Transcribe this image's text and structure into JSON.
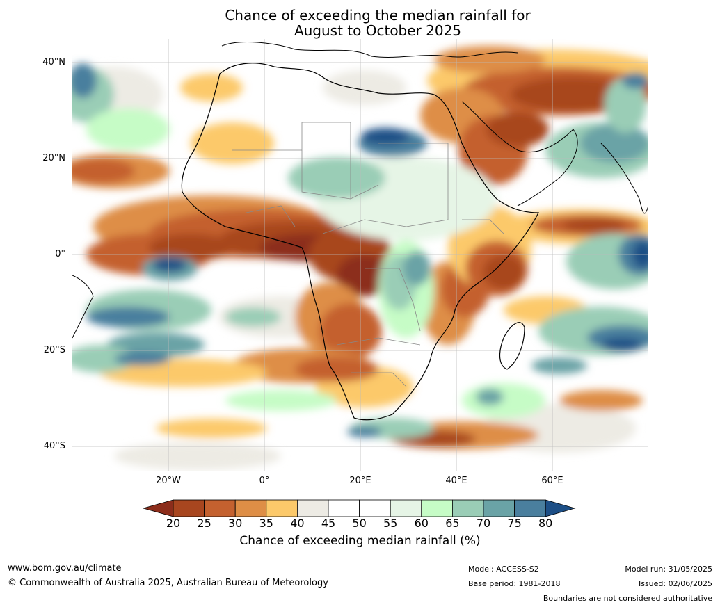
{
  "title": {
    "line1": "Chance of exceeding the median rainfall for",
    "line2": "August to October 2025"
  },
  "map": {
    "region": "Africa",
    "lat_labels": [
      "40°N",
      "20°N",
      "0°",
      "20°S",
      "40°S"
    ],
    "lon_labels": [
      "20°W",
      "0°",
      "20°E",
      "40°E",
      "60°E"
    ]
  },
  "colorbar": {
    "ticks": [
      "20",
      "25",
      "30",
      "35",
      "40",
      "45",
      "50",
      "55",
      "60",
      "65",
      "70",
      "75",
      "80"
    ],
    "colors": [
      "#8c2d1b",
      "#a8461f",
      "#c4612f",
      "#de8e46",
      "#fcc96a",
      "#edebe4",
      "#ffffff",
      "#ffffff",
      "#e6f5e6",
      "#c6fcc6",
      "#9acdb6",
      "#6aa3a6",
      "#4a7f9e",
      "#1d4f86"
    ],
    "label": "Chance of exceeding median rainfall (%)"
  },
  "footer": {
    "url": "www.bom.gov.au/climate",
    "copyright": "© Commonwealth of Australia 2025, Australian Bureau of Meteorology",
    "model": "Model: ACCESS-S2",
    "base_period": "Base period: 1981-2018",
    "model_run": "Model run: 31/05/2025",
    "issued": "Issued: 02/06/2025",
    "disclaimer": "Boundaries are not considered authoritative"
  }
}
